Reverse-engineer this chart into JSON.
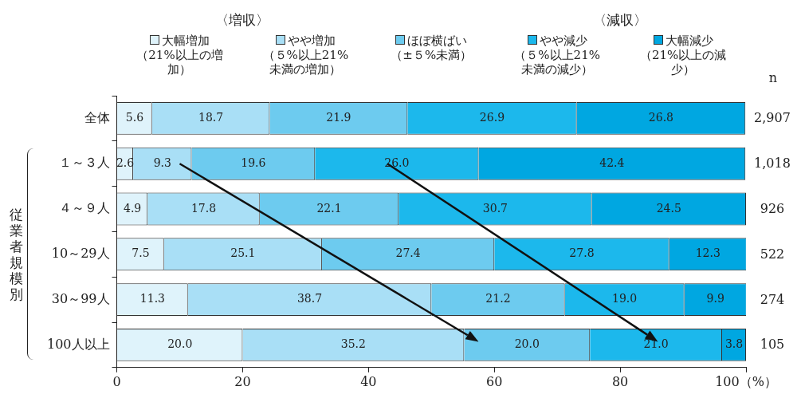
{
  "chart_data": {
    "type": "bar",
    "orientation": "horizontal",
    "stacked": true,
    "grid": false,
    "legend": "top",
    "ylabel": "従業者規模別",
    "categories": [
      "全体",
      "１～３人",
      "４～９人",
      "10～29人",
      "30～99人",
      "100人以上"
    ],
    "series": [
      {
        "name": "大幅増加（21%以上の増加）",
        "color": "#dff3fb",
        "values": [
          5.6,
          2.6,
          4.9,
          7.5,
          11.3,
          20.0
        ],
        "value_labels": [
          "5.6",
          "2.6",
          "4.9",
          "7.5",
          "11.3",
          "20.0"
        ]
      },
      {
        "name": "やや増加（５%以上21%未満の増加）",
        "color": "#a9dff6",
        "values": [
          18.7,
          9.3,
          17.8,
          25.1,
          38.7,
          35.2
        ],
        "value_labels": [
          "18.7",
          "9.3",
          "17.8",
          "25.1",
          "38.7",
          "35.2"
        ]
      },
      {
        "name": "ほぼ横ばい（±５%未満）",
        "color": "#6dcbef",
        "values": [
          21.9,
          19.6,
          22.1,
          27.4,
          21.2,
          20.0
        ],
        "value_labels": [
          "21.9",
          "19.6",
          "22.1",
          "27.4",
          "21.2",
          "20.0"
        ]
      },
      {
        "name": "やや減少（５%以上21%未満の減少）",
        "color": "#1cb8ec",
        "values": [
          26.9,
          26.0,
          30.7,
          27.8,
          19.0,
          21.0
        ],
        "value_labels": [
          "26.9",
          "26.0",
          "30.7",
          "27.8",
          "19.0",
          "21.0"
        ]
      },
      {
        "name": "大幅減少（21%以上の減少）",
        "color": "#00a7e1",
        "values": [
          26.8,
          42.4,
          24.5,
          12.3,
          9.9,
          3.8
        ],
        "value_labels": [
          "26.8",
          "42.4",
          "24.5",
          "12.3",
          "9.9",
          "3.8"
        ]
      }
    ],
    "xlim": [
      0,
      100
    ],
    "xticks": [
      0,
      20,
      40,
      60,
      80,
      {
        "value": 100,
        "label": "100（%）"
      }
    ],
    "annotations": [
      "〈増収〉",
      "〈減収〉",
      "n",
      "2,907",
      "1,018",
      "926",
      "522",
      "274",
      "105"
    ]
  }
}
